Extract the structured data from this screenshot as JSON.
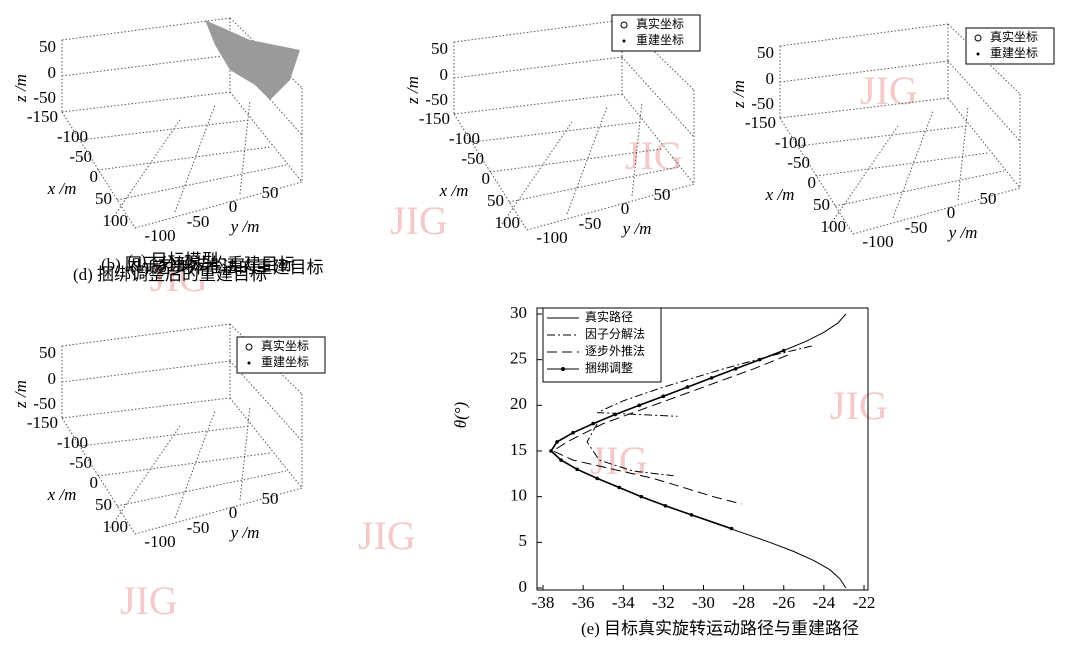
{
  "chart_data": [
    {
      "type": "scatter3d",
      "caption": "(a) 目标模型",
      "zlabel": "z /m",
      "xlabel": "x /m",
      "ylabel": "y /m",
      "zticks": [
        50,
        0,
        -50
      ],
      "xticks": [
        -150,
        -100,
        -50,
        0,
        50,
        100
      ],
      "yticks": [
        -100,
        -50,
        0,
        50
      ]
    },
    {
      "type": "scatter3d",
      "caption": "(b) 因子分解法的重建目标",
      "zlabel": "z /m",
      "xlabel": "x /m",
      "ylabel": "y /m",
      "zticks": [
        50,
        0,
        -50
      ],
      "xticks": [
        -150,
        -100,
        -50,
        0,
        50,
        100
      ],
      "yticks": [
        -100,
        -50,
        0,
        50
      ],
      "legend": [
        "真实坐标",
        "重建坐标"
      ]
    },
    {
      "type": "scatter3d",
      "caption": "(c) 逐步外推法的重建目标",
      "zlabel": "z /m",
      "xlabel": "x /m",
      "ylabel": "y /m",
      "zticks": [
        50,
        0,
        -50
      ],
      "xticks": [
        -150,
        -100,
        -50,
        0,
        50,
        100
      ],
      "yticks": [
        -100,
        -50,
        0,
        50
      ],
      "legend": [
        "真实坐标",
        "重建坐标"
      ]
    },
    {
      "type": "scatter3d",
      "caption": "(d) 捆绑调整后的重建目标",
      "zlabel": "z /m",
      "xlabel": "x /m",
      "ylabel": "y /m",
      "zticks": [
        50,
        0,
        -50
      ],
      "xticks": [
        -150,
        -100,
        -50,
        0,
        50,
        100
      ],
      "yticks": [
        -100,
        -50,
        0,
        50
      ],
      "legend": [
        "真实坐标",
        "重建坐标"
      ]
    },
    {
      "type": "line",
      "caption": "(e) 目标真实旋转运动路径与重建路径",
      "ylabel": "θ(°)",
      "xlim": [
        -38,
        -22
      ],
      "ylim": [
        0,
        30
      ],
      "xticks": [
        -38,
        -36,
        -34,
        -32,
        -30,
        -28,
        -26,
        -24,
        -22
      ],
      "yticks": [
        0,
        5,
        10,
        15,
        20,
        25,
        30
      ],
      "legend_position": "upper left",
      "series": [
        {
          "name": "真实路径",
          "color": "#000000",
          "style": "solid",
          "y": [
            0,
            1,
            2,
            3,
            4,
            5,
            6,
            7,
            8,
            9,
            10,
            11,
            12,
            13,
            14,
            15,
            16,
            17,
            18,
            19,
            20,
            21,
            22,
            23,
            24,
            25,
            26,
            27,
            28,
            29,
            30
          ],
          "x": [
            -22.9,
            -23.2,
            -23.7,
            -24.5,
            -25.5,
            -26.7,
            -28.0,
            -29.3,
            -30.6,
            -31.9,
            -33.1,
            -34.2,
            -35.3,
            -36.3,
            -37.1,
            -37.6,
            -37.3,
            -36.5,
            -35.5,
            -34.4,
            -33.2,
            -32.0,
            -30.8,
            -29.6,
            -28.4,
            -27.2,
            -26.0,
            -24.9,
            -24.0,
            -23.3,
            -22.9
          ]
        },
        {
          "name": "因子分解法",
          "color": "#000000",
          "style": "dashdot",
          "y": [
            26.5,
            25.5,
            24,
            22,
            20.5,
            19.2,
            18.8,
            null,
            18,
            16,
            14,
            12.8,
            12.3
          ],
          "x": [
            -24.6,
            -26.5,
            -29,
            -32,
            -34,
            -35.3,
            -31.3,
            null,
            -35.3,
            -35.8,
            -35.2,
            -33.5,
            -31.5
          ]
        },
        {
          "name": "逐步外推法",
          "color": "#000000",
          "style": "dashed",
          "y": [
            25.5,
            24,
            22,
            20,
            18,
            16,
            15,
            14,
            13,
            12,
            11,
            10,
            9.2
          ],
          "x": [
            -25.8,
            -27.5,
            -30,
            -32.5,
            -35,
            -36.8,
            -37.5,
            -36.5,
            -34.5,
            -32.5,
            -31,
            -29.5,
            -28.1
          ]
        },
        {
          "name": "捆绑调整",
          "color": "#000000",
          "style": "marker",
          "y": [
            6.5,
            8,
            9,
            10,
            11,
            12,
            13,
            14,
            15,
            16,
            17,
            18,
            19,
            20,
            21,
            22,
            23,
            24,
            25,
            26
          ],
          "x": [
            -28.6,
            -30.6,
            -31.9,
            -33.1,
            -34.2,
            -35.3,
            -36.3,
            -37.1,
            -37.6,
            -37.3,
            -36.5,
            -35.5,
            -34.4,
            -33.2,
            -32.0,
            -30.8,
            -29.6,
            -28.4,
            -27.2,
            -26.0
          ]
        }
      ]
    }
  ],
  "watermark": "JIG"
}
